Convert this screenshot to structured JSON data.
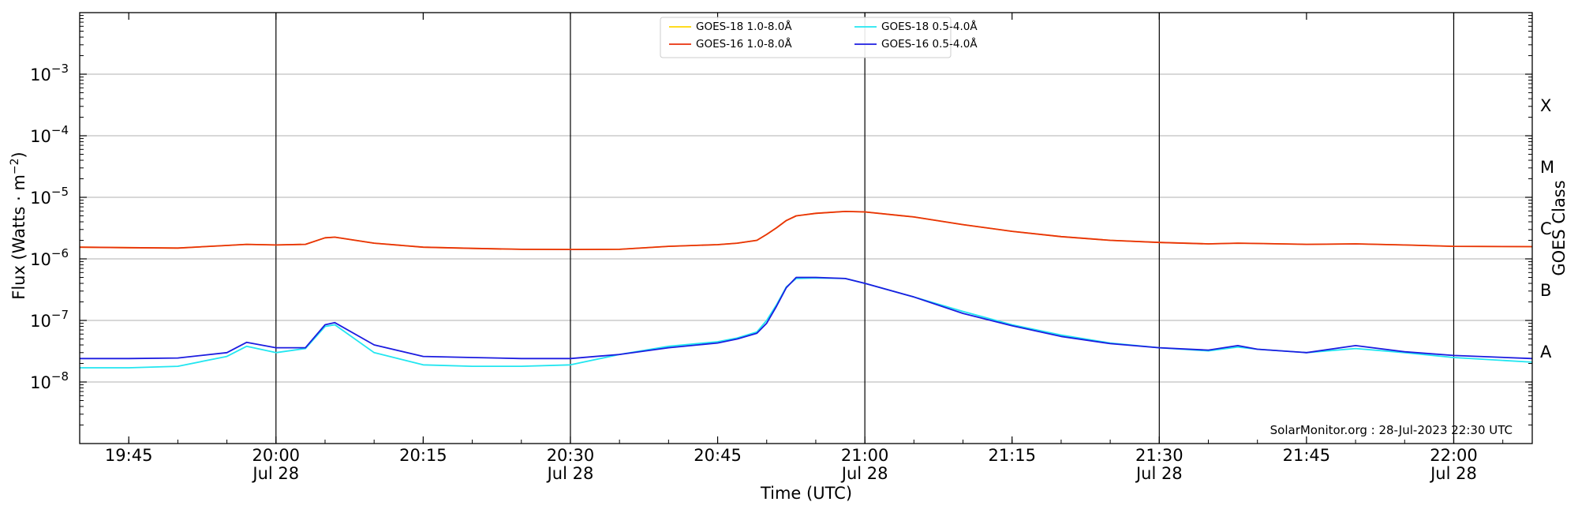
{
  "chart_data": {
    "type": "line",
    "xlabel": "Time (UTC)",
    "ylabel": "Flux (Watts · m",
    "ylabel_exp": "−2",
    "ylabel_close": ")",
    "right_label": "GOES Class",
    "credit": "SolarMonitor.org : 28-Jul-2023 22:30 UTC",
    "y_scale": "log",
    "ylim_exp": [
      -9,
      -2
    ],
    "xlim": [
      "19:40",
      "22:08"
    ],
    "grid": "horizontal",
    "legend_position": "top-center",
    "x_ticks": [
      {
        "time": "19:45",
        "line1": "19:45",
        "line2": ""
      },
      {
        "time": "20:00",
        "line1": "20:00",
        "line2": "Jul 28"
      },
      {
        "time": "20:15",
        "line1": "20:15",
        "line2": ""
      },
      {
        "time": "20:30",
        "line1": "20:30",
        "line2": "Jul 28"
      },
      {
        "time": "20:45",
        "line1": "20:45",
        "line2": ""
      },
      {
        "time": "21:00",
        "line1": "21:00",
        "line2": "Jul 28"
      },
      {
        "time": "21:15",
        "line1": "21:15",
        "line2": ""
      },
      {
        "time": "21:30",
        "line1": "21:30",
        "line2": "Jul 28"
      },
      {
        "time": "21:45",
        "line1": "21:45",
        "line2": ""
      },
      {
        "time": "22:00",
        "line1": "22:00",
        "line2": "Jul 28"
      }
    ],
    "vertical_lines": [
      "20:00",
      "20:30",
      "21:00",
      "21:30",
      "22:00"
    ],
    "y_ticks": [
      {
        "exp": -8,
        "base": "10",
        "sup": "−8"
      },
      {
        "exp": -7,
        "base": "10",
        "sup": "−7"
      },
      {
        "exp": -6,
        "base": "10",
        "sup": "−6"
      },
      {
        "exp": -5,
        "base": "10",
        "sup": "−5"
      },
      {
        "exp": -4,
        "base": "10",
        "sup": "−4"
      },
      {
        "exp": -3,
        "base": "10",
        "sup": "−3"
      }
    ],
    "goes_classes": [
      {
        "label": "A",
        "exp": -7.5
      },
      {
        "label": "B",
        "exp": -6.5
      },
      {
        "label": "C",
        "exp": -5.5
      },
      {
        "label": "M",
        "exp": -4.5
      },
      {
        "label": "X",
        "exp": -3.5
      }
    ],
    "x": [
      "19:40",
      "19:45",
      "19:50",
      "19:55",
      "19:57",
      "20:00",
      "20:03",
      "20:05",
      "20:06",
      "20:10",
      "20:15",
      "20:20",
      "20:25",
      "20:30",
      "20:35",
      "20:40",
      "20:45",
      "20:47",
      "20:49",
      "20:50",
      "20:51",
      "20:52",
      "20:53",
      "20:55",
      "20:58",
      "21:00",
      "21:05",
      "21:10",
      "21:15",
      "21:20",
      "21:25",
      "21:30",
      "21:35",
      "21:38",
      "21:40",
      "21:45",
      "21:50",
      "21:55",
      "22:00",
      "22:08"
    ],
    "series": [
      {
        "name": "GOES-18 1.0-8.0Å",
        "color": "#ffd700",
        "values": [
          1.55e-06,
          1.52e-06,
          1.5e-06,
          1.65e-06,
          1.72e-06,
          1.68e-06,
          1.72e-06,
          2.2e-06,
          2.25e-06,
          1.8e-06,
          1.55e-06,
          1.48e-06,
          1.43e-06,
          1.42e-06,
          1.43e-06,
          1.6e-06,
          1.7e-06,
          1.8e-06,
          2e-06,
          2.5e-06,
          3.2e-06,
          4.2e-06,
          5e-06,
          5.5e-06,
          5.9e-06,
          5.8e-06,
          4.8e-06,
          3.6e-06,
          2.8e-06,
          2.3e-06,
          2e-06,
          1.85e-06,
          1.75e-06,
          1.8e-06,
          1.78e-06,
          1.72e-06,
          1.75e-06,
          1.68e-06,
          1.6e-06,
          1.58e-06
        ]
      },
      {
        "name": "GOES-16 1.0-8.0Å",
        "color": "#e8310c",
        "values": [
          1.55e-06,
          1.52e-06,
          1.5e-06,
          1.65e-06,
          1.72e-06,
          1.68e-06,
          1.72e-06,
          2.2e-06,
          2.25e-06,
          1.8e-06,
          1.55e-06,
          1.48e-06,
          1.43e-06,
          1.42e-06,
          1.43e-06,
          1.6e-06,
          1.7e-06,
          1.8e-06,
          2e-06,
          2.5e-06,
          3.2e-06,
          4.2e-06,
          5e-06,
          5.5e-06,
          5.9e-06,
          5.8e-06,
          4.8e-06,
          3.6e-06,
          2.8e-06,
          2.3e-06,
          2e-06,
          1.85e-06,
          1.75e-06,
          1.8e-06,
          1.78e-06,
          1.72e-06,
          1.75e-06,
          1.68e-06,
          1.6e-06,
          1.58e-06
        ]
      },
      {
        "name": "GOES-18 0.5-4.0Å",
        "color": "#22e6f0",
        "values": [
          1.7e-08,
          1.7e-08,
          1.8e-08,
          2.6e-08,
          3.8e-08,
          3e-08,
          3.5e-08,
          8e-08,
          8.5e-08,
          3e-08,
          1.9e-08,
          1.8e-08,
          1.8e-08,
          1.9e-08,
          2.8e-08,
          3.8e-08,
          4.5e-08,
          5.2e-08,
          6.5e-08,
          1e-07,
          1.8e-07,
          3.5e-07,
          4.8e-07,
          4.9e-07,
          4.8e-07,
          4e-07,
          2.4e-07,
          1.4e-07,
          8.5e-08,
          5.8e-08,
          4.3e-08,
          3.6e-08,
          3.2e-08,
          3.7e-08,
          3.4e-08,
          3e-08,
          3.5e-08,
          3e-08,
          2.5e-08,
          2.1e-08
        ]
      },
      {
        "name": "GOES-16 0.5-4.0Å",
        "color": "#1c1ce0",
        "values": [
          2.4e-08,
          2.4e-08,
          2.45e-08,
          3e-08,
          4.4e-08,
          3.6e-08,
          3.6e-08,
          8.5e-08,
          9.2e-08,
          4e-08,
          2.6e-08,
          2.5e-08,
          2.4e-08,
          2.4e-08,
          2.8e-08,
          3.6e-08,
          4.3e-08,
          5e-08,
          6.2e-08,
          9e-08,
          1.7e-07,
          3.4e-07,
          5e-07,
          5e-07,
          4.8e-07,
          4e-07,
          2.4e-07,
          1.3e-07,
          8.2e-08,
          5.5e-08,
          4.2e-08,
          3.6e-08,
          3.3e-08,
          3.9e-08,
          3.4e-08,
          3e-08,
          3.9e-08,
          3.1e-08,
          2.7e-08,
          2.4e-08
        ]
      }
    ]
  }
}
